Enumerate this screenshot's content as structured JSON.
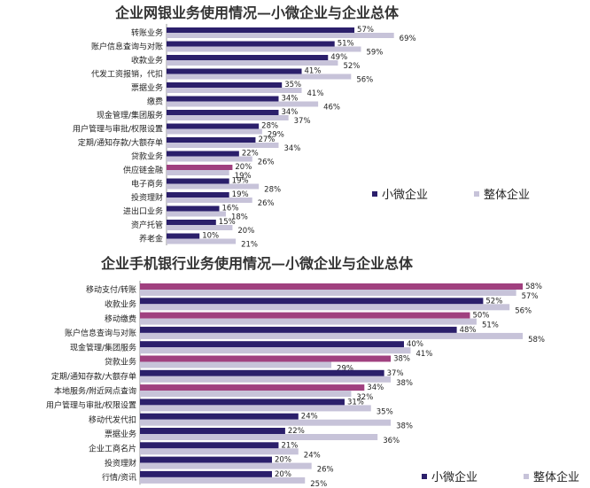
{
  "colors": {
    "small": "#2b1f6b",
    "total": "#c7c3d9",
    "highlight": "#a0407f",
    "axis": "#999999"
  },
  "chart_data": [
    {
      "type": "bar",
      "orientation": "horizontal",
      "title": "企业网银业务使用情况—小微企业与企业总体",
      "categories": [
        "转账业务",
        "账户信息查询与对账",
        "收款业务",
        "代发工资报销，代扣",
        "票据业务",
        "缴费",
        "现金管理/集团服务",
        "用户管理与审批/权限设置",
        "定期/通知存款/大额存单",
        "贷款业务",
        "供应链金融",
        "电子商务",
        "投资理财",
        "进出口业务",
        "资产托管",
        "养老金"
      ],
      "highlight_categories": [
        "供应链金融"
      ],
      "series": [
        {
          "name": "小微企业",
          "values": [
            57,
            51,
            49,
            41,
            35,
            34,
            34,
            28,
            27,
            22,
            20,
            19,
            19,
            16,
            15,
            10
          ],
          "labels": [
            "57%",
            "51%",
            "49%",
            "41%",
            "35%",
            "34%",
            "34%",
            "28%",
            "27%",
            "22%",
            "20%",
            "19%",
            "19%",
            "16%",
            "15%",
            "10%"
          ]
        },
        {
          "name": "整体企业",
          "values": [
            69,
            59,
            52,
            56,
            41,
            46,
            37,
            29,
            34,
            26,
            19,
            28,
            26,
            18,
            20,
            21
          ],
          "labels": [
            "69%",
            "59%",
            "52%",
            "56%",
            "41%",
            "46%",
            "37%",
            "29%",
            "34%",
            "26%",
            "19%",
            "28%",
            "26%",
            "18%",
            "20%",
            "21%"
          ]
        }
      ],
      "xlim": [
        0,
        70
      ],
      "legend_position": "right"
    },
    {
      "type": "bar",
      "orientation": "horizontal",
      "title": "企业手机银行业务使用情况—小微企业与企业总体",
      "categories": [
        "移动支付/转账",
        "收款业务",
        "移动缴费",
        "账户信息查询与对账",
        "现金管理/集团服务",
        "贷款业务",
        "定期/通知存款/大额存单",
        "本地服务/附近网点查询",
        "用户管理与审批/权限设置",
        "移动代发代扣",
        "票据业务",
        "企业工商名片",
        "投资理财",
        "行情/资讯"
      ],
      "highlight_categories": [
        "移动支付/转账",
        "移动缴费",
        "贷款业务",
        "本地服务/附近网点查询"
      ],
      "series": [
        {
          "name": "小微企业",
          "values": [
            58,
            52,
            50,
            48,
            40,
            38,
            37,
            34,
            31,
            24,
            22,
            21,
            20,
            20
          ],
          "labels": [
            "58%",
            "52%",
            "50%",
            "48%",
            "40%",
            "38%",
            "37%",
            "34%",
            "31%",
            "24%",
            "22%",
            "21%",
            "20%",
            "20%"
          ]
        },
        {
          "name": "整体企业",
          "values": [
            57,
            56,
            51,
            58,
            41,
            29,
            38,
            32,
            35,
            38,
            36,
            24,
            26,
            25
          ],
          "labels": [
            "57%",
            "56%",
            "51%",
            "58%",
            "41%",
            "29%",
            "38%",
            "32%",
            "35%",
            "38%",
            "36%",
            "24%",
            "26%",
            "25%"
          ]
        }
      ],
      "xlim": [
        0,
        60
      ],
      "legend_position": "bottom-right"
    }
  ]
}
